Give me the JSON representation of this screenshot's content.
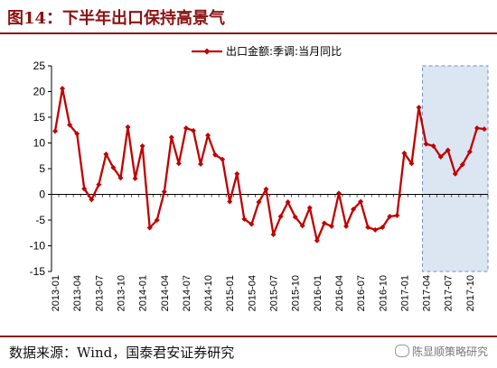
{
  "figure": {
    "title": "图14：下半年出口保持高景气",
    "source": "数据来源：Wind，国泰君安证券研究",
    "watermark": "陈显顺策略研究"
  },
  "chart_data": {
    "type": "line",
    "title": "",
    "xlabel": "",
    "ylabel": "",
    "ylim": [
      -15,
      25
    ],
    "yticks": [
      -15,
      -10,
      -5,
      0,
      5,
      10,
      15,
      20,
      25
    ],
    "grid": false,
    "legend_position": "top",
    "series_color": "#c00000",
    "highlight_color": "#dce6f2",
    "highlight_range": [
      "2017-04",
      "2017-12"
    ],
    "tick_labels": [
      "2013-01",
      "2013-04",
      "2013-07",
      "2013-10",
      "2014-01",
      "2014-04",
      "2014-07",
      "2014-10",
      "2015-01",
      "2015-04",
      "2015-07",
      "2015-10",
      "2016-01",
      "2016-04",
      "2016-07",
      "2016-10",
      "2017-01",
      "2017-04",
      "2017-07",
      "2017-10"
    ],
    "x": [
      "2013-01",
      "2013-02",
      "2013-03",
      "2013-04",
      "2013-05",
      "2013-06",
      "2013-07",
      "2013-08",
      "2013-09",
      "2013-10",
      "2013-11",
      "2013-12",
      "2014-01",
      "2014-02",
      "2014-03",
      "2014-04",
      "2014-05",
      "2014-06",
      "2014-07",
      "2014-08",
      "2014-09",
      "2014-10",
      "2014-11",
      "2014-12",
      "2015-01",
      "2015-02",
      "2015-03",
      "2015-04",
      "2015-05",
      "2015-06",
      "2015-07",
      "2015-08",
      "2015-09",
      "2015-10",
      "2015-11",
      "2015-12",
      "2016-01",
      "2016-02",
      "2016-03",
      "2016-04",
      "2016-05",
      "2016-06",
      "2016-07",
      "2016-08",
      "2016-09",
      "2016-10",
      "2016-11",
      "2016-12",
      "2017-01",
      "2017-02",
      "2017-03",
      "2017-04",
      "2017-05",
      "2017-06",
      "2017-07",
      "2017-08",
      "2017-09",
      "2017-10",
      "2017-11",
      "2017-12"
    ],
    "series": [
      {
        "name": "出口金额:季调:当月同比",
        "values": [
          12.3,
          20.6,
          13.5,
          11.8,
          1.1,
          -1.0,
          1.9,
          7.8,
          5.2,
          3.2,
          13.1,
          3.1,
          9.4,
          -6.5,
          -5.0,
          0.5,
          11.1,
          6.0,
          12.9,
          12.4,
          5.9,
          11.5,
          7.7,
          6.8,
          -1.4,
          4.0,
          -4.8,
          -5.8,
          -1.5,
          1.0,
          -7.8,
          -4.3,
          -1.5,
          -4.4,
          -6.1,
          -2.6,
          -9.0,
          -5.6,
          -6.2,
          0.2,
          -6.2,
          -2.9,
          -1.4,
          -6.4,
          -6.9,
          -6.4,
          -4.3,
          -4.1,
          8.0,
          6.0,
          16.9,
          9.8,
          9.4,
          7.3,
          8.6,
          4.0,
          5.8,
          8.3,
          12.9,
          12.7
        ]
      }
    ]
  }
}
